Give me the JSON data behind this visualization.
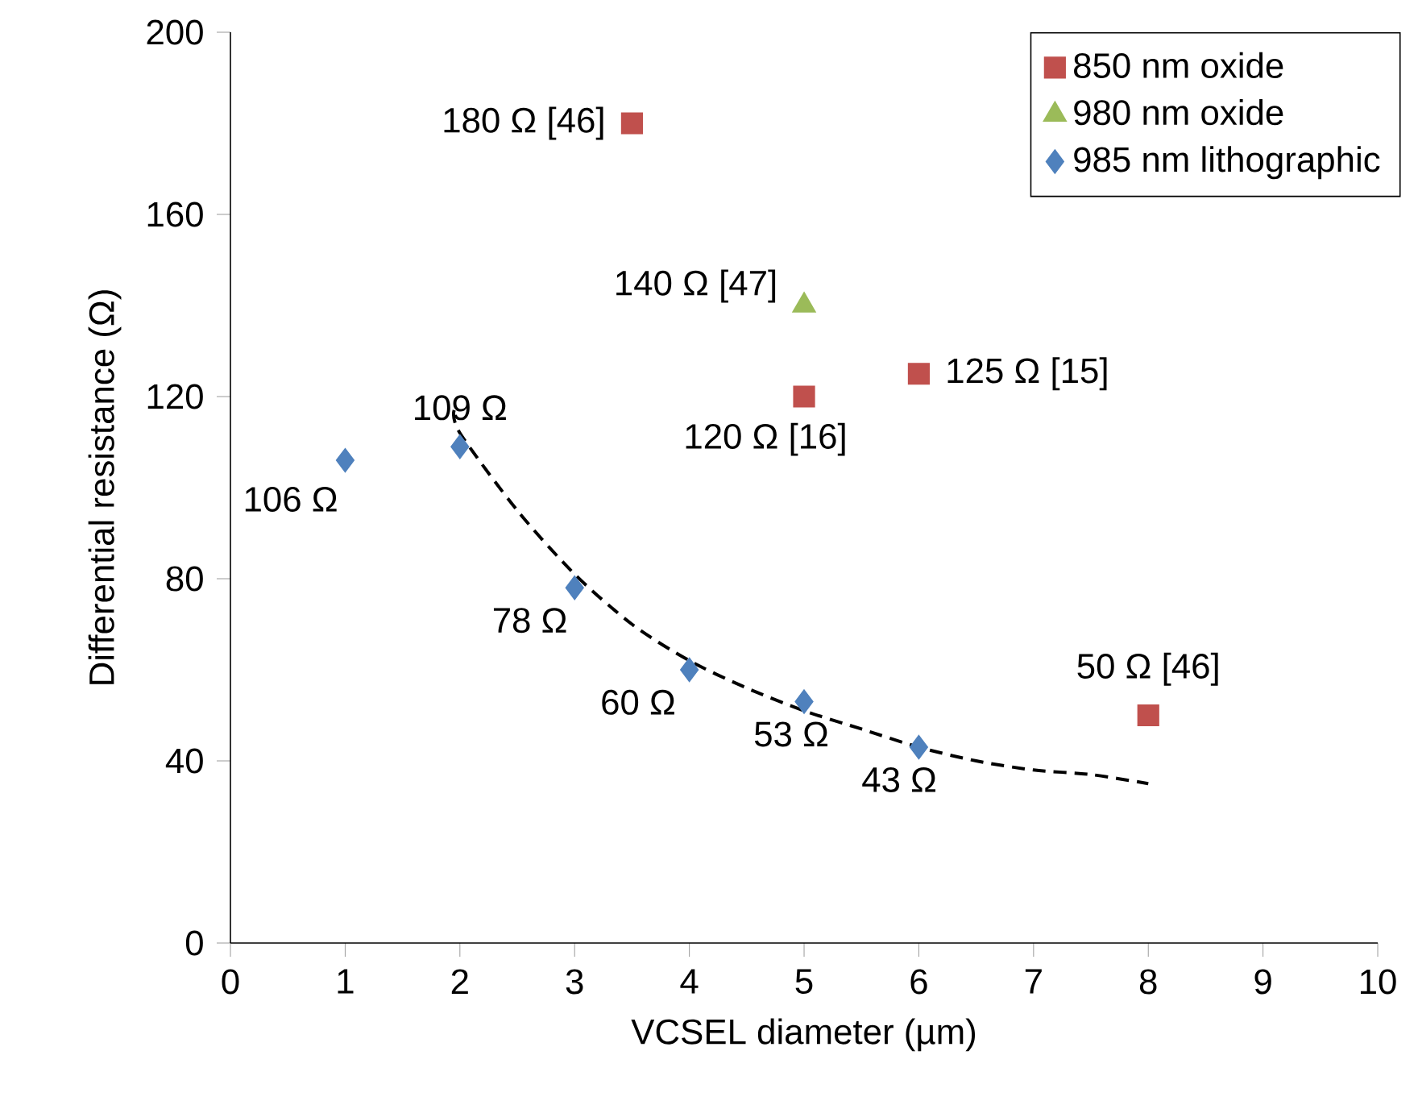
{
  "chart_data": {
    "type": "scatter",
    "xlabel": "VCSEL diameter (µm)",
    "ylabel": "Differential resistance (Ω)",
    "xlim": [
      0,
      10
    ],
    "xticks": [
      0,
      1,
      2,
      3,
      4,
      5,
      6,
      7,
      8,
      9,
      10
    ],
    "ylim": [
      0,
      200
    ],
    "yticks": [
      0,
      40,
      80,
      120,
      160,
      200
    ],
    "legend": "top right",
    "grid": false,
    "series": [
      {
        "name": "850 nm oxide",
        "color": "#c0504d",
        "marker": "square",
        "x": [
          3.5,
          5,
          6,
          8
        ],
        "values": [
          180,
          120,
          125,
          50
        ]
      },
      {
        "name": "980 nm oxide",
        "color": "#9bbb59",
        "marker": "triangle",
        "x": [
          5
        ],
        "values": [
          140
        ]
      },
      {
        "name": "985 nm lithographic",
        "color": "#4f81bd",
        "marker": "diamond",
        "x": [
          1,
          2,
          3,
          4,
          5,
          6
        ],
        "values": [
          106,
          109,
          78,
          60,
          53,
          43
        ]
      },
      {
        "type": "line",
        "color": "#000000",
        "marker": "none",
        "line_style": "dashed",
        "x": [
          1.95,
          2,
          2.5,
          3,
          3.5,
          4,
          4.5,
          5,
          5.5,
          6,
          6.5,
          7,
          7.5,
          8
        ],
        "values": [
          117,
          112,
          95,
          81,
          70,
          62,
          56,
          51,
          47,
          43,
          40,
          38,
          37,
          35
        ]
      }
    ],
    "annotations": [
      {
        "text": "180 Ω [46]",
        "x": 3.5,
        "y": 180
      },
      {
        "text": "140 Ω [47]",
        "x": 5,
        "y": 140
      },
      {
        "text": "120 Ω [16]",
        "x": 5,
        "y": 120
      },
      {
        "text": "125 Ω [15]",
        "x": 6,
        "y": 125
      },
      {
        "text": "50 Ω [46]",
        "x": 8,
        "y": 50
      },
      {
        "text": "109 Ω",
        "x": 2,
        "y": 109
      },
      {
        "text": "106 Ω",
        "x": 1,
        "y": 106
      },
      {
        "text": "78 Ω",
        "x": 3,
        "y": 78
      },
      {
        "text": "60 Ω",
        "x": 4,
        "y": 60
      },
      {
        "text": "53 Ω",
        "x": 5,
        "y": 53
      },
      {
        "text": "43 Ω",
        "x": 6,
        "y": 43
      }
    ]
  }
}
